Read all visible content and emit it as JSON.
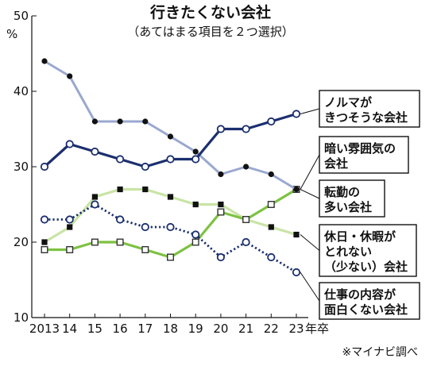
{
  "chart_data": {
    "type": "line",
    "title": "行きたくない会社",
    "subtitle": "（あてはまる項目を２つ選択）",
    "y_unit": "%",
    "x_suffix": "年卒",
    "source": "※マイナビ調べ",
    "x_labels": [
      "2013",
      "14",
      "15",
      "16",
      "17",
      "18",
      "19",
      "20",
      "21",
      "22",
      "23"
    ],
    "ylim": [
      10,
      50
    ],
    "y_ticks": [
      "10",
      "20",
      "30",
      "40",
      "50"
    ],
    "grid": false,
    "series": [
      {
        "name_lines": [
          "ノルマが",
          "きつそうな会社"
        ],
        "color": "#1b2f6e",
        "style": "solid-thick",
        "marker": "open-circle",
        "values": [
          30,
          33,
          32,
          31,
          30,
          31,
          31,
          35,
          35,
          36,
          37
        ]
      },
      {
        "name_lines": [
          "暗い雰囲気の",
          "会社"
        ],
        "color": "#9aa8cf",
        "style": "solid",
        "marker": "filled-circle",
        "values": [
          44,
          42,
          36,
          36,
          36,
          34,
          32,
          29,
          30,
          29,
          27
        ]
      },
      {
        "name_lines": [
          "転勤の",
          "多い会社"
        ],
        "color": "#7dc242",
        "style": "solid-thick",
        "marker": "open-square",
        "values": [
          19,
          19,
          20,
          20,
          19,
          18,
          20,
          24,
          23,
          25,
          27
        ]
      },
      {
        "name_lines": [
          "休日・休暇が",
          "とれない",
          "（少ない）会社"
        ],
        "color": "#c9e4a6",
        "style": "solid-thick",
        "marker": "filled-square",
        "values": [
          20,
          22,
          26,
          27,
          27,
          26,
          25,
          25,
          23,
          22,
          21
        ]
      },
      {
        "name_lines": [
          "仕事の内容が",
          "面白くない会社"
        ],
        "color": "#1b2f6e",
        "style": "dotted",
        "marker": "open-circle",
        "values": [
          23,
          23,
          25,
          23,
          22,
          22,
          21,
          18,
          20,
          18,
          16
        ]
      }
    ]
  }
}
